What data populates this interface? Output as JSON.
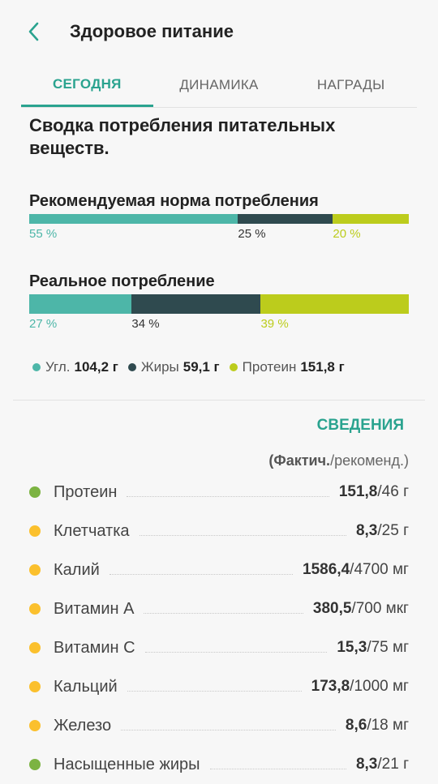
{
  "header": {
    "title": "Здоровое питание"
  },
  "tabs": [
    {
      "label": "СЕГОДНЯ",
      "active": true
    },
    {
      "label": "ДИНАМИКА",
      "active": false
    },
    {
      "label": "НАГРАДЫ",
      "active": false
    }
  ],
  "summary": {
    "title": "Сводка потребления питательных веществ."
  },
  "colors": {
    "accent": "#2aa38f",
    "carbs": "#4db6a8",
    "fat": "#2f4a4f",
    "protein": "#bccc1c",
    "dot_green": "#7cb342",
    "dot_yellow": "#fbc02d"
  },
  "recommended": {
    "label": "Рекомендуемая норма потребления",
    "segments": [
      {
        "key": "carbs",
        "percent": 55,
        "text": "55 %"
      },
      {
        "key": "fat",
        "percent": 25,
        "text": "25 %"
      },
      {
        "key": "protein",
        "percent": 20,
        "text": "20 %"
      }
    ]
  },
  "actual": {
    "label": "Реальное потребление",
    "segments": [
      {
        "key": "carbs",
        "percent": 27,
        "text": "27 %"
      },
      {
        "key": "fat",
        "percent": 34,
        "text": "34 %"
      },
      {
        "key": "protein",
        "percent": 39,
        "text": "39 %"
      }
    ]
  },
  "legend": [
    {
      "name": "Угл.",
      "value": "104,2 г",
      "color": "#4db6a8"
    },
    {
      "name": "Жиры",
      "value": "59,1 г",
      "color": "#2f4a4f"
    },
    {
      "name": "Протеин",
      "value": "151,8 г",
      "color": "#bccc1c"
    }
  ],
  "details": {
    "button": "СВЕДЕНИЯ",
    "note_bold": "(Фактич.",
    "note_rest": "/рекоменд.)",
    "items": [
      {
        "name": "Протеин",
        "actual": "151,8",
        "rec": "/46 г",
        "dot": "#7cb342"
      },
      {
        "name": "Клетчатка",
        "actual": "8,3",
        "rec": "/25 г",
        "dot": "#fbc02d"
      },
      {
        "name": "Калий",
        "actual": "1586,4",
        "rec": "/4700 мг",
        "dot": "#fbc02d"
      },
      {
        "name": "Витамин А",
        "actual": "380,5",
        "rec": "/700 мкг",
        "dot": "#fbc02d"
      },
      {
        "name": "Витамин С",
        "actual": "15,3",
        "rec": "/75 мг",
        "dot": "#fbc02d"
      },
      {
        "name": "Кальций",
        "actual": "173,8",
        "rec": "/1000 мг",
        "dot": "#fbc02d"
      },
      {
        "name": "Железо",
        "actual": "8,6",
        "rec": "/18 мг",
        "dot": "#fbc02d"
      },
      {
        "name": "Насыщенные жиры",
        "actual": "8,3",
        "rec": "/21 г",
        "dot": "#7cb342"
      }
    ]
  }
}
